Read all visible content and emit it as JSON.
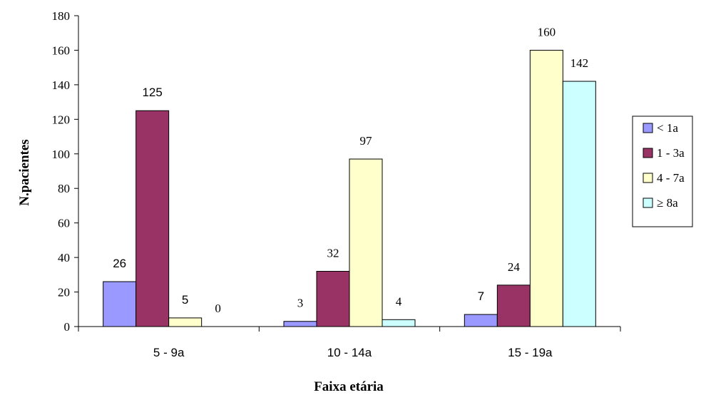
{
  "chart_data": {
    "type": "bar",
    "categories": [
      "5 - 9a",
      "10 - 14a",
      "15 - 19a"
    ],
    "series": [
      {
        "name": "< 1a",
        "values": [
          26,
          3,
          7
        ],
        "color": "#9999ff"
      },
      {
        "name": "1 - 3a",
        "values": [
          125,
          32,
          24
        ],
        "color": "#993366"
      },
      {
        "name": "4 - 7a",
        "values": [
          5,
          97,
          160
        ],
        "color": "#ffffcc"
      },
      {
        "name": "≥ 8a",
        "values": [
          0,
          4,
          142
        ],
        "color": "#ccffff"
      }
    ],
    "title": "",
    "xlabel": "Faixa etária",
    "ylabel": "N.pacientes",
    "ylim": [
      0,
      180
    ],
    "yticks": [
      0,
      20,
      40,
      60,
      80,
      100,
      120,
      140,
      160,
      180
    ],
    "grid": false,
    "legend": "right"
  }
}
